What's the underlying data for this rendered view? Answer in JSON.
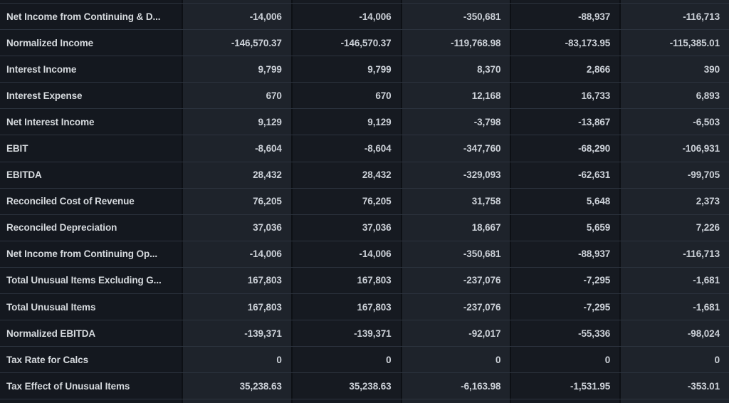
{
  "table": {
    "name": "income-statement-financials-table",
    "columns_visible": 5,
    "rows": [
      {
        "label": "Net Income from Continuing & D...",
        "values": [
          "-14,006",
          "-14,006",
          "-350,681",
          "-88,937",
          "-116,713"
        ]
      },
      {
        "label": "Normalized Income",
        "values": [
          "-146,570.37",
          "-146,570.37",
          "-119,768.98",
          "-83,173.95",
          "-115,385.01"
        ]
      },
      {
        "label": "Interest Income",
        "values": [
          "9,799",
          "9,799",
          "8,370",
          "2,866",
          "390"
        ]
      },
      {
        "label": "Interest Expense",
        "values": [
          "670",
          "670",
          "12,168",
          "16,733",
          "6,893"
        ]
      },
      {
        "label": "Net Interest Income",
        "values": [
          "9,129",
          "9,129",
          "-3,798",
          "-13,867",
          "-6,503"
        ]
      },
      {
        "label": "EBIT",
        "values": [
          "-8,604",
          "-8,604",
          "-347,760",
          "-68,290",
          "-106,931"
        ]
      },
      {
        "label": "EBITDA",
        "values": [
          "28,432",
          "28,432",
          "-329,093",
          "-62,631",
          "-99,705"
        ]
      },
      {
        "label": "Reconciled Cost of Revenue",
        "values": [
          "76,205",
          "76,205",
          "31,758",
          "5,648",
          "2,373"
        ]
      },
      {
        "label": "Reconciled Depreciation",
        "values": [
          "37,036",
          "37,036",
          "18,667",
          "5,659",
          "7,226"
        ]
      },
      {
        "label": "Net Income from Continuing Op...",
        "values": [
          "-14,006",
          "-14,006",
          "-350,681",
          "-88,937",
          "-116,713"
        ]
      },
      {
        "label": "Total Unusual Items Excluding G...",
        "values": [
          "167,803",
          "167,803",
          "-237,076",
          "-7,295",
          "-1,681"
        ]
      },
      {
        "label": "Total Unusual Items",
        "values": [
          "167,803",
          "167,803",
          "-237,076",
          "-7,295",
          "-1,681"
        ]
      },
      {
        "label": "Normalized EBITDA",
        "values": [
          "-139,371",
          "-139,371",
          "-92,017",
          "-55,336",
          "-98,024"
        ]
      },
      {
        "label": "Tax Rate for Calcs",
        "values": [
          "0",
          "0",
          "0",
          "0",
          "0"
        ]
      },
      {
        "label": "Tax Effect of Unusual Items",
        "values": [
          "35,238.63",
          "35,238.63",
          "-6,163.98",
          "-1,531.95",
          "-353.01"
        ]
      }
    ],
    "colors": {
      "background_dark": "#14181f",
      "stripe_dark": "#161a21",
      "stripe_light": "#1e232b",
      "row_border": "#2c333e",
      "column_border": "#0d1015",
      "label_text": "#d6dade",
      "value_text": "#ccd1d8"
    }
  }
}
